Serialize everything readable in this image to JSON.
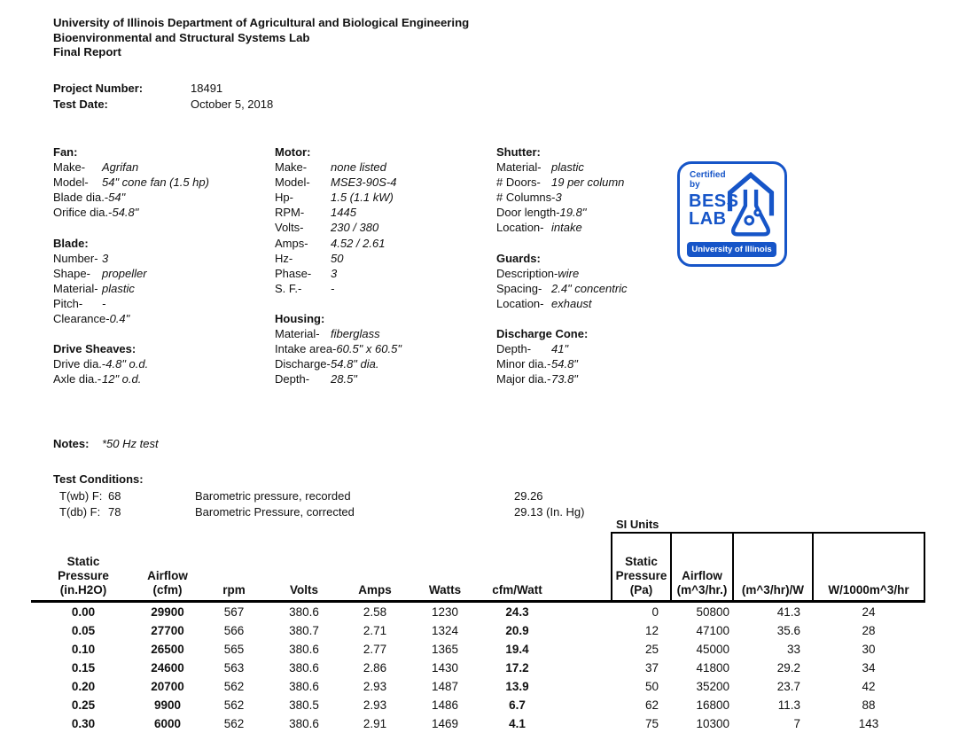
{
  "header": {
    "line1": "University of Illinois Department of Agricultural and Biological Engineering",
    "line2": "Bioenvironmental and Structural Systems Lab",
    "line3": "Final Report"
  },
  "project": {
    "number_label": "Project Number:",
    "number": "18491",
    "date_label": "Test  Date:",
    "date": "October 5, 2018"
  },
  "specs": {
    "col1": [
      {
        "h": "Fan:"
      },
      {
        "l": "Make-",
        "v": "Agrifan"
      },
      {
        "l": "Model-",
        "v": "54\" cone fan (1.5 hp)"
      },
      {
        "l": "Blade dia.-",
        "v": "54\""
      },
      {
        "l": "Orifice dia.-",
        "v": "54.8\""
      },
      {},
      {
        "h": "Blade:"
      },
      {
        "l": "Number-",
        "v": "3"
      },
      {
        "l": "Shape-",
        "v": "propeller"
      },
      {
        "l": "Material-",
        "v": "plastic"
      },
      {
        "l": "Pitch-",
        "v": "-"
      },
      {
        "l": "Clearance-",
        "v": "0.4\""
      },
      {},
      {
        "h": "Drive Sheaves:"
      },
      {
        "l": "Drive dia.-",
        "v": "4.8\" o.d."
      },
      {
        "l": "Axle dia.-",
        "v": "12\" o.d."
      }
    ],
    "col2": [
      {
        "h": "Motor:"
      },
      {
        "l": "Make-",
        "v": "none listed"
      },
      {
        "l": "Model-",
        "v": "MSE3-90S-4"
      },
      {
        "l": "Hp-",
        "v": "1.5 (1.1 kW)"
      },
      {
        "l": "RPM-",
        "v": "1445"
      },
      {
        "l": "Volts-",
        "v": "230 / 380"
      },
      {
        "l": "Amps-",
        "v": "4.52 / 2.61"
      },
      {
        "l": "Hz-",
        "v": "50"
      },
      {
        "l": "Phase-",
        "v": "3"
      },
      {
        "l": "S. F.-",
        "v": "-"
      },
      {},
      {
        "h": "Housing:"
      },
      {
        "l": "Material-",
        "v": "fiberglass"
      },
      {
        "l": "Intake area-",
        "v": "60.5\" x 60.5\""
      },
      {
        "l": "Discharge-",
        "v": "54.8\" dia."
      },
      {
        "l": "Depth-",
        "v": "28.5\""
      }
    ],
    "col3": [
      {
        "h": "Shutter:"
      },
      {
        "l": "Material-",
        "v": "plastic"
      },
      {
        "l": "# Doors-",
        "v": "19 per column"
      },
      {
        "l": "# Columns-",
        "v": "3"
      },
      {
        "l": "Door length-",
        "v": "19.8\""
      },
      {
        "l": "Location-",
        "v": "intake"
      },
      {},
      {
        "h": "Guards:"
      },
      {
        "l": "Description-",
        "v": "wire"
      },
      {
        "l": "Spacing-",
        "v": "2.4\" concentric"
      },
      {
        "l": "Location-",
        "v": "exhaust"
      },
      {},
      {
        "h": "Discharge Cone:"
      },
      {
        "l": "Depth-",
        "v": "41\""
      },
      {
        "l": "Minor dia.-",
        "v": "54.8\""
      },
      {
        "l": "Major dia.-",
        "v": "73.8\""
      }
    ]
  },
  "notes": {
    "label": "Notes:",
    "value": "*50 Hz test"
  },
  "logo": {
    "blue": "#1655c8",
    "certified": "Certified",
    "by": "by",
    "bess": "BESS",
    "lab": "LAB",
    "university": "University of Illinois"
  },
  "test_conditions": {
    "title": "Test Conditions:",
    "rows": [
      {
        "label": "T(wb) F:",
        "value": "68",
        "desc": "Barometric pressure, recorded",
        "reading": "29.26"
      },
      {
        "label": "T(db) F:",
        "value": "78",
        "desc": "Barometric Pressure, corrected",
        "reading": "29.13 (In. Hg)"
      }
    ]
  },
  "table": {
    "si_units_label": "SI Units",
    "ip_headers": [
      {
        "lines": [
          "Static",
          "Pressure",
          "(in.H2O)"
        ]
      },
      {
        "lines": [
          "Airflow",
          "(cfm)"
        ]
      },
      {
        "lines": [
          "rpm"
        ]
      },
      {
        "lines": [
          "Volts"
        ]
      },
      {
        "lines": [
          "Amps"
        ]
      },
      {
        "lines": [
          "Watts"
        ]
      },
      {
        "lines": [
          "cfm/Watt"
        ]
      }
    ],
    "si_headers": [
      {
        "lines": [
          "Static",
          "Pressure",
          "(Pa)"
        ]
      },
      {
        "lines": [
          "Airflow",
          "(m^3/hr.)"
        ]
      },
      {
        "lines": [
          "(m^3/hr)/W"
        ]
      },
      {
        "lines": [
          "W/1000m^3/hr"
        ]
      }
    ],
    "rows": [
      [
        "0.00",
        "29900",
        "567",
        "380.6",
        "2.58",
        "1230",
        "24.3",
        "0",
        "50800",
        "41.3",
        "24"
      ],
      [
        "0.05",
        "27700",
        "566",
        "380.7",
        "2.71",
        "1324",
        "20.9",
        "12",
        "47100",
        "35.6",
        "28"
      ],
      [
        "0.10",
        "26500",
        "565",
        "380.6",
        "2.77",
        "1365",
        "19.4",
        "25",
        "45000",
        "33",
        "30"
      ],
      [
        "0.15",
        "24600",
        "563",
        "380.6",
        "2.86",
        "1430",
        "17.2",
        "37",
        "41800",
        "29.2",
        "34"
      ],
      [
        "0.20",
        "20700",
        "562",
        "380.6",
        "2.93",
        "1487",
        "13.9",
        "50",
        "35200",
        "23.7",
        "42"
      ],
      [
        "0.25",
        "9900",
        "562",
        "380.5",
        "2.93",
        "1486",
        "6.7",
        "62",
        "16800",
        "11.3",
        "88"
      ],
      [
        "0.30",
        "6000",
        "562",
        "380.6",
        "2.91",
        "1469",
        "4.1",
        "75",
        "10300",
        "7",
        "143"
      ]
    ]
  }
}
